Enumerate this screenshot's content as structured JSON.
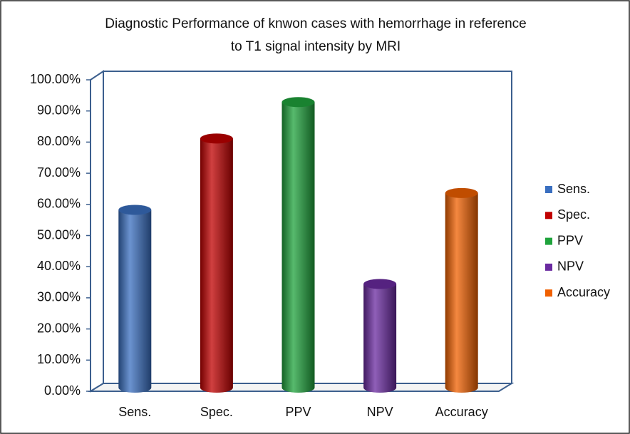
{
  "chart_data": {
    "type": "bar",
    "title": "Diagnostic Performance of knwon cases with hemorrhage in reference to T1 signal intensity by MRI",
    "categories": [
      "Sens.",
      "Spec.",
      "PPV",
      "NPV",
      "Accuracy"
    ],
    "values": [
      57.1,
      80,
      91.7,
      33.3,
      62.5
    ],
    "colors": [
      "#3a6fc0",
      "#c00000",
      "#1fa33c",
      "#6a2aa0",
      "#f06000"
    ],
    "ylim": [
      0,
      100
    ],
    "yticks": [
      {
        "value": 0,
        "label": "0.00%"
      },
      {
        "value": 10,
        "label": "10.00%"
      },
      {
        "value": 20,
        "label": "20.00%"
      },
      {
        "value": 30,
        "label": "30.00%"
      },
      {
        "value": 40,
        "label": "40.00%"
      },
      {
        "value": 50,
        "label": "50.00%"
      },
      {
        "value": 60,
        "label": "60.00%"
      },
      {
        "value": 70,
        "label": "70.00%"
      },
      {
        "value": 80,
        "label": "80.00%"
      },
      {
        "value": 90,
        "label": "90.00%"
      },
      {
        "value": 100,
        "label": "100.00%"
      }
    ],
    "grid": false,
    "legend": "right"
  }
}
